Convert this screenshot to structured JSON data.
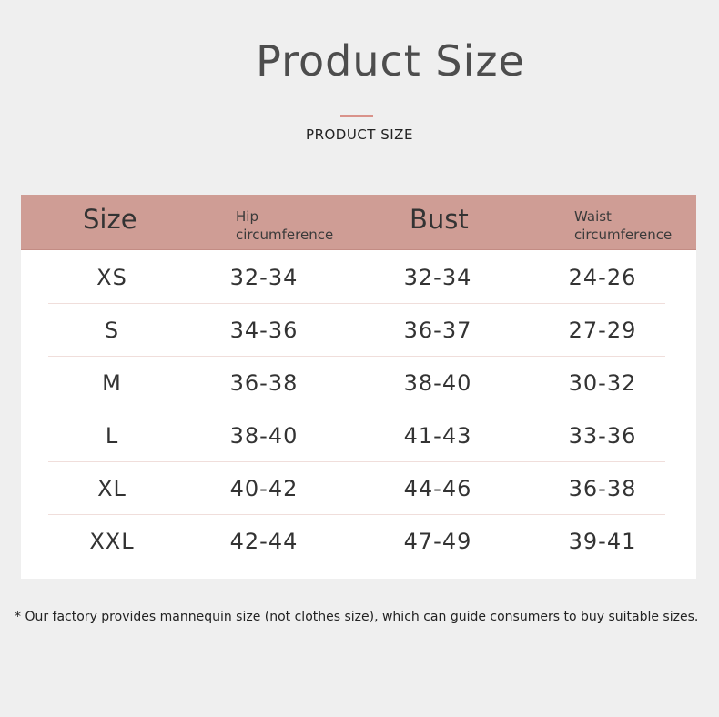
{
  "header": {
    "title": "Product Size",
    "subtitle": "PRODUCT SIZE"
  },
  "colors": {
    "accent": "#d9928a",
    "table_header": "#cf9d95",
    "background": "#efefef"
  },
  "table": {
    "columns": [
      "Size",
      "Hip\ncircumference",
      "Bust",
      "Waist\ncircumference"
    ],
    "rows": [
      [
        "XS",
        "32-34",
        "32-34",
        "24-26"
      ],
      [
        "S",
        "34-36",
        "36-37",
        "27-29"
      ],
      [
        "M",
        "36-38",
        "38-40",
        "30-32"
      ],
      [
        "L",
        "38-40",
        "41-43",
        "33-36"
      ],
      [
        "XL",
        "40-42",
        "44-46",
        "36-38"
      ],
      [
        "XXL",
        "42-44",
        "47-49",
        "39-41"
      ]
    ]
  },
  "footnote": "* Our factory provides mannequin size (not clothes size), which can guide consumers to buy suitable sizes."
}
